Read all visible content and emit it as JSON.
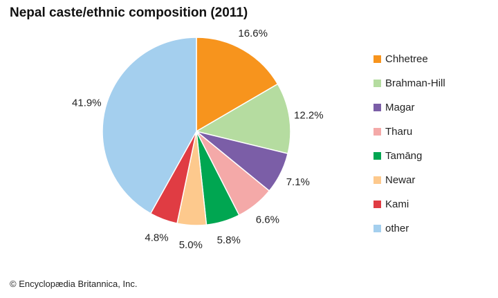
{
  "chart_data": {
    "type": "pie",
    "title": "Nepal caste/ethnic composition (2011)",
    "start_angle_deg": 0,
    "direction": "clockwise",
    "legend_position": "right",
    "slices": [
      {
        "label": "Chhetree",
        "value": 16.6,
        "display": "16.6%",
        "color": "#f7941d"
      },
      {
        "label": "Brahman-Hill",
        "value": 12.2,
        "display": "12.2%",
        "color": "#b5dca0"
      },
      {
        "label": "Magar",
        "value": 7.1,
        "display": "7.1%",
        "color": "#7b5ea7"
      },
      {
        "label": "Tharu",
        "value": 6.6,
        "display": "6.6%",
        "color": "#f4a9a8"
      },
      {
        "label": "Tamāng",
        "value": 5.8,
        "display": "5.8%",
        "color": "#00a651"
      },
      {
        "label": "Newar",
        "value": 5.0,
        "display": "5.0%",
        "color": "#fdc98d"
      },
      {
        "label": "Kami",
        "value": 4.8,
        "display": "4.8%",
        "color": "#e03c43"
      },
      {
        "label": "other",
        "value": 41.9,
        "display": "41.9%",
        "color": "#a4cfee"
      }
    ]
  },
  "credit": "© Encyclopædia Britannica, Inc."
}
